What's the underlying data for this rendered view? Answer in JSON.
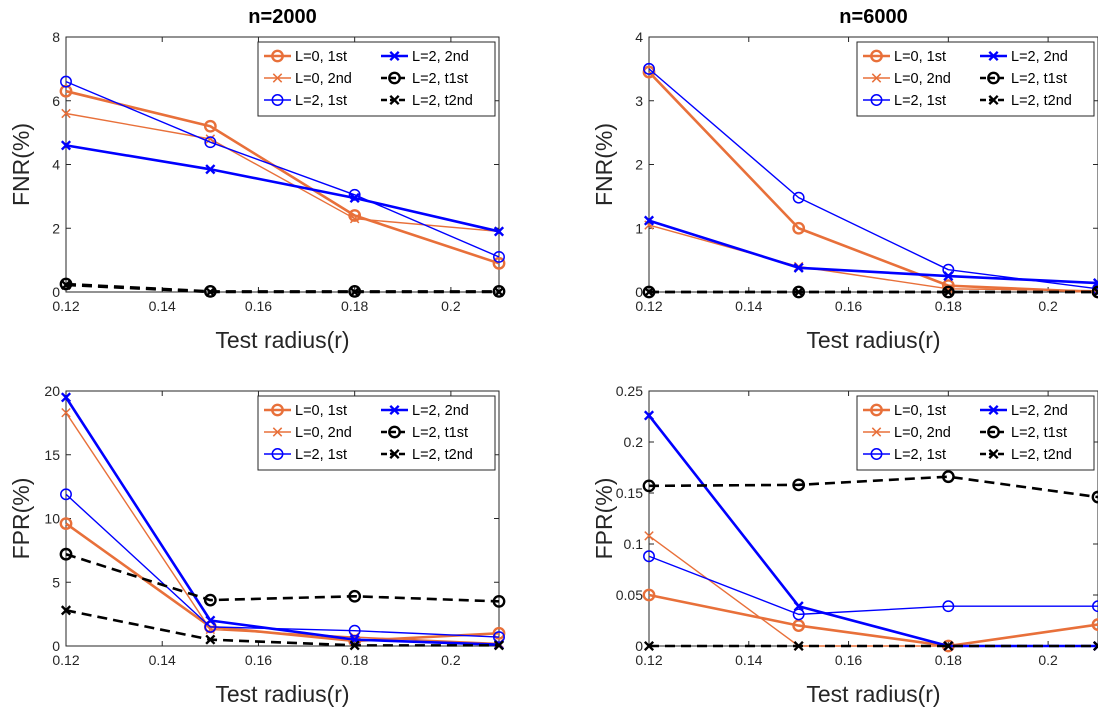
{
  "colors": {
    "orange": "#E8703A",
    "blue": "#0000FF",
    "black": "#000000"
  },
  "chart_data": [
    {
      "type": "line",
      "title": "n=2000",
      "xlabel": "Test radius(r)",
      "ylabel": "FNR(%)",
      "xlim": [
        0.12,
        0.21
      ],
      "ylim": [
        0,
        8
      ],
      "xticks": [
        0.12,
        0.14,
        0.16,
        0.18,
        0.2
      ],
      "xtick_labels": [
        "0.12",
        "0.14",
        "0.16",
        "0.18",
        "0.2"
      ],
      "yticks": [
        0,
        2,
        4,
        6,
        8
      ],
      "ytick_labels": [
        "0",
        "2",
        "4",
        "6",
        "8"
      ],
      "legend_position": "top-right",
      "x": [
        0.12,
        0.15,
        0.18,
        0.21
      ],
      "series": [
        {
          "name": "L=0, 1st",
          "color": "orange",
          "marker": "circle",
          "style": "solid",
          "weight": "thick",
          "values": [
            6.3,
            5.2,
            2.4,
            0.9
          ]
        },
        {
          "name": "L=0, 2nd",
          "color": "orange",
          "marker": "x",
          "style": "solid",
          "weight": "thin",
          "values": [
            5.6,
            4.8,
            2.3,
            1.9
          ]
        },
        {
          "name": "L=2, 1st",
          "color": "blue",
          "marker": "circle",
          "style": "solid",
          "weight": "thin",
          "values": [
            6.6,
            4.7,
            3.05,
            1.1
          ]
        },
        {
          "name": "L=2, 2nd",
          "color": "blue",
          "marker": "x",
          "style": "solid",
          "weight": "thick",
          "values": [
            4.6,
            3.85,
            2.95,
            1.9
          ]
        },
        {
          "name": "L=2, t1st",
          "color": "black",
          "marker": "circle",
          "style": "dashed",
          "weight": "thick",
          "values": [
            0.25,
            0.02,
            0.02,
            0.02
          ]
        },
        {
          "name": "L=2, t2nd",
          "color": "black",
          "marker": "x",
          "style": "dashed",
          "weight": "thick",
          "values": [
            0.22,
            0.0,
            0.0,
            0.0
          ]
        }
      ]
    },
    {
      "type": "line",
      "title": "n=6000",
      "xlabel": "Test radius(r)",
      "ylabel": "FNR(%)",
      "xlim": [
        0.12,
        0.21
      ],
      "ylim": [
        0,
        4
      ],
      "xticks": [
        0.12,
        0.14,
        0.16,
        0.18,
        0.2
      ],
      "xtick_labels": [
        "0.12",
        "0.14",
        "0.16",
        "0.18",
        "0.2"
      ],
      "yticks": [
        0,
        1,
        2,
        3,
        4
      ],
      "ytick_labels": [
        "0",
        "1",
        "2",
        "3",
        "4"
      ],
      "legend_position": "top-right",
      "x": [
        0.12,
        0.15,
        0.18,
        0.21
      ],
      "series": [
        {
          "name": "L=0, 1st",
          "color": "orange",
          "marker": "circle",
          "style": "solid",
          "weight": "thick",
          "values": [
            3.45,
            1.0,
            0.1,
            0.0
          ]
        },
        {
          "name": "L=0, 2nd",
          "color": "orange",
          "marker": "x",
          "style": "solid",
          "weight": "thin",
          "values": [
            1.05,
            0.4,
            0.05,
            0.02
          ]
        },
        {
          "name": "L=2, 1st",
          "color": "blue",
          "marker": "circle",
          "style": "solid",
          "weight": "thin",
          "values": [
            3.5,
            1.48,
            0.35,
            0.05
          ]
        },
        {
          "name": "L=2, 2nd",
          "color": "blue",
          "marker": "x",
          "style": "solid",
          "weight": "thick",
          "values": [
            1.12,
            0.38,
            0.25,
            0.14
          ]
        },
        {
          "name": "L=2, t1st",
          "color": "black",
          "marker": "circle",
          "style": "dashed",
          "weight": "thick",
          "values": [
            0.0,
            0.0,
            0.0,
            0.0
          ]
        },
        {
          "name": "L=2, t2nd",
          "color": "black",
          "marker": "x",
          "style": "dashed",
          "weight": "thick",
          "values": [
            0.0,
            0.0,
            0.0,
            0.0
          ]
        }
      ]
    },
    {
      "type": "line",
      "title": "",
      "xlabel": "Test radius(r)",
      "ylabel": "FPR(%)",
      "xlim": [
        0.12,
        0.21
      ],
      "ylim": [
        0,
        20
      ],
      "xticks": [
        0.12,
        0.14,
        0.16,
        0.18,
        0.2
      ],
      "xtick_labels": [
        "0.12",
        "0.14",
        "0.16",
        "0.18",
        "0.2"
      ],
      "yticks": [
        0,
        5,
        10,
        15,
        20
      ],
      "ytick_labels": [
        "0",
        "5",
        "10",
        "15",
        "20"
      ],
      "legend_position": "top-right",
      "x": [
        0.12,
        0.15,
        0.18,
        0.21
      ],
      "series": [
        {
          "name": "L=0, 1st",
          "color": "orange",
          "marker": "circle",
          "style": "solid",
          "weight": "thick",
          "values": [
            9.6,
            1.5,
            0.4,
            1.0
          ]
        },
        {
          "name": "L=0, 2nd",
          "color": "orange",
          "marker": "x",
          "style": "solid",
          "weight": "thin",
          "values": [
            18.3,
            1.3,
            0.7,
            0.2
          ]
        },
        {
          "name": "L=2, 1st",
          "color": "blue",
          "marker": "circle",
          "style": "solid",
          "weight": "thin",
          "values": [
            11.9,
            1.5,
            1.2,
            0.7
          ]
        },
        {
          "name": "L=2, 2nd",
          "color": "blue",
          "marker": "x",
          "style": "solid",
          "weight": "thick",
          "values": [
            19.5,
            2.0,
            0.5,
            0.1
          ]
        },
        {
          "name": "L=2, t1st",
          "color": "black",
          "marker": "circle",
          "style": "dashed",
          "weight": "thick",
          "values": [
            7.2,
            3.6,
            3.9,
            3.5
          ]
        },
        {
          "name": "L=2, t2nd",
          "color": "black",
          "marker": "x",
          "style": "dashed",
          "weight": "thick",
          "values": [
            2.8,
            0.5,
            0.05,
            0.05
          ]
        }
      ]
    },
    {
      "type": "line",
      "title": "",
      "xlabel": "Test radius(r)",
      "ylabel": "FPR(%)",
      "xlim": [
        0.12,
        0.21
      ],
      "ylim": [
        0,
        0.25
      ],
      "xticks": [
        0.12,
        0.14,
        0.16,
        0.18,
        0.2
      ],
      "xtick_labels": [
        "0.12",
        "0.14",
        "0.16",
        "0.18",
        "0.2"
      ],
      "yticks": [
        0,
        0.05,
        0.1,
        0.15,
        0.2,
        0.25
      ],
      "ytick_labels": [
        "0",
        "0.05",
        "0.1",
        "0.15",
        "0.2",
        "0.25"
      ],
      "legend_position": "top-right",
      "x": [
        0.12,
        0.15,
        0.18,
        0.21
      ],
      "series": [
        {
          "name": "L=0, 1st",
          "color": "orange",
          "marker": "circle",
          "style": "solid",
          "weight": "thick",
          "values": [
            0.05,
            0.02,
            0.0,
            0.021
          ]
        },
        {
          "name": "L=0, 2nd",
          "color": "orange",
          "marker": "x",
          "style": "solid",
          "weight": "thin",
          "values": [
            0.108,
            0.0,
            0.0,
            0.0
          ]
        },
        {
          "name": "L=2, 1st",
          "color": "blue",
          "marker": "circle",
          "style": "solid",
          "weight": "thin",
          "values": [
            0.088,
            0.031,
            0.039,
            0.039
          ]
        },
        {
          "name": "L=2, 2nd",
          "color": "blue",
          "marker": "x",
          "style": "solid",
          "weight": "thick",
          "values": [
            0.226,
            0.039,
            0.0,
            0.0
          ]
        },
        {
          "name": "L=2, t1st",
          "color": "black",
          "marker": "circle",
          "style": "dashed",
          "weight": "thick",
          "values": [
            0.157,
            0.158,
            0.166,
            0.146
          ]
        },
        {
          "name": "L=2, t2nd",
          "color": "black",
          "marker": "x",
          "style": "dashed",
          "weight": "thick",
          "values": [
            0.0,
            0.0,
            0.0,
            0.0
          ]
        }
      ]
    }
  ]
}
